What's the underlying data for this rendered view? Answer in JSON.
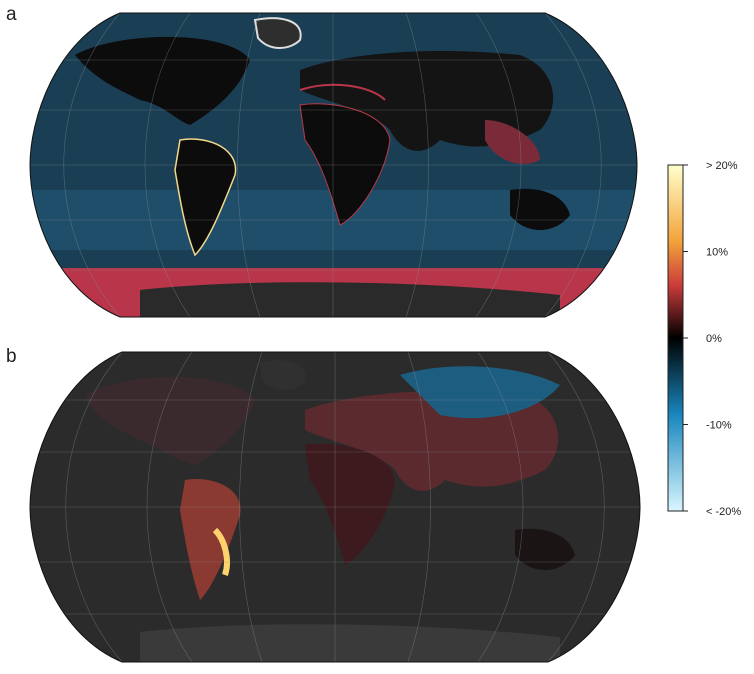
{
  "panels": [
    {
      "label": "a"
    },
    {
      "label": "b"
    }
  ],
  "colorbar": {
    "ticks": [
      {
        "value": 20,
        "label": "> 20%"
      },
      {
        "value": 10,
        "label": "10%"
      },
      {
        "value": 0,
        "label": "0%"
      },
      {
        "value": -10,
        "label": "-10%"
      },
      {
        "value": -20,
        "label": "< -20%"
      }
    ]
  }
}
